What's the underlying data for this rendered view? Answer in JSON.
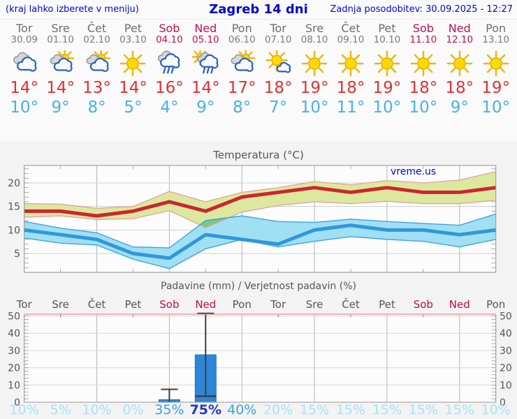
{
  "header": {
    "left_note": "(kraj lahko izberete v meniju)",
    "title": "Zagreb 14 dni",
    "updated": "Zadnja posodobitev: 30.09.2025 - 12:27"
  },
  "watermark": "vreme.us",
  "days": [
    {
      "name": "Tor",
      "date": "30.09",
      "weekend": false,
      "icon": "cloudy"
    },
    {
      "name": "Sre",
      "date": "01.10",
      "weekend": false,
      "icon": "partly-cloudy"
    },
    {
      "name": "Čet",
      "date": "02.10",
      "weekend": false,
      "icon": "partly-cloudy"
    },
    {
      "name": "Pet",
      "date": "03.10",
      "weekend": false,
      "icon": "sunny"
    },
    {
      "name": "Sob",
      "date": "04.10",
      "weekend": true,
      "icon": "rain"
    },
    {
      "name": "Ned",
      "date": "05.10",
      "weekend": true,
      "icon": "sun-rain"
    },
    {
      "name": "Pon",
      "date": "06.10",
      "weekend": false,
      "icon": "partly-cloudy"
    },
    {
      "name": "Tor",
      "date": "07.10",
      "weekend": false,
      "icon": "mostly-sunny"
    },
    {
      "name": "Sre",
      "date": "08.10",
      "weekend": false,
      "icon": "sunny"
    },
    {
      "name": "Čet",
      "date": "09.10",
      "weekend": false,
      "icon": "sunny"
    },
    {
      "name": "Pet",
      "date": "10.10",
      "weekend": false,
      "icon": "sunny"
    },
    {
      "name": "Sob",
      "date": "11.10",
      "weekend": true,
      "icon": "sunny"
    },
    {
      "name": "Ned",
      "date": "12.10",
      "weekend": true,
      "icon": "sunny"
    },
    {
      "name": "Pon",
      "date": "13.10",
      "weekend": false,
      "icon": "sunny"
    }
  ],
  "chart_data": [
    {
      "type": "line",
      "title": "Temperatura (°C)",
      "categories": [
        "Tor 30.09",
        "Sre 01.10",
        "Čet 02.10",
        "Pet 03.10",
        "Sob 04.10",
        "Ned 05.10",
        "Pon 06.10",
        "Tor 07.10",
        "Sre 08.10",
        "Čet 09.10",
        "Pet 10.10",
        "Sob 11.10",
        "Ned 12.10",
        "Pon 13.10"
      ],
      "ylim": [
        1,
        23.7
      ],
      "yticks": [
        5,
        10,
        15,
        20
      ],
      "grid": true,
      "watermark": "vreme.us",
      "series": [
        {
          "name": "maksimalna temperatura",
          "color": "#cd2430",
          "band_color": "#dce89e",
          "values": [
            14,
            14,
            13,
            14,
            16,
            14,
            17,
            18,
            19,
            18,
            19,
            18,
            18,
            19
          ],
          "band_hi": [
            15.6,
            15.5,
            14.6,
            15,
            18.2,
            16,
            18,
            19,
            20.3,
            19.6,
            20.5,
            20,
            20.6,
            22.4
          ],
          "band_lo": [
            12.7,
            13,
            12.2,
            12.4,
            14.1,
            10.5,
            13.8,
            15.2,
            16,
            15.6,
            16.1,
            15.6,
            15.6,
            16.3
          ]
        },
        {
          "name": "minimalna temperatura",
          "color": "#2f97dc",
          "band_color": "#a0e0f2",
          "values": [
            10,
            9,
            8,
            5,
            4,
            9,
            8,
            7,
            10,
            11,
            10,
            10,
            9,
            10
          ],
          "band_hi": [
            11.8,
            10.4,
            9.4,
            6.4,
            6.2,
            12,
            13,
            11.8,
            11.6,
            12.3,
            11.8,
            11.4,
            11,
            13.4
          ],
          "band_lo": [
            8.3,
            7.2,
            6.8,
            3.8,
            1.8,
            6,
            8,
            6.4,
            7.6,
            8.6,
            8,
            7.6,
            6.4,
            8
          ]
        }
      ],
      "overlap_color": "#7cc87f"
    },
    {
      "type": "bar",
      "title": "Padavine (mm) / Verjetnost padavin (%)",
      "categories": [
        "Tor",
        "Sre",
        "Čet",
        "Pet",
        "Sob",
        "Ned",
        "Pon",
        "Tor",
        "Sre",
        "Čet",
        "Pet",
        "Sob",
        "Ned",
        "Pon"
      ],
      "values": [
        0,
        0,
        0,
        0,
        1.5,
        27.5,
        0,
        0,
        0,
        0,
        0,
        0,
        0,
        0
      ],
      "whisker_hi": [
        null,
        null,
        null,
        null,
        7.5,
        51.5,
        null,
        null,
        null,
        null,
        null,
        null,
        null,
        null
      ],
      "whisker_lo": [
        null,
        null,
        null,
        null,
        0,
        3.5,
        null,
        null,
        null,
        null,
        null,
        null,
        null,
        null
      ],
      "probabilities_pct": [
        10,
        5,
        10,
        0,
        35,
        75,
        40,
        20,
        15,
        15,
        15,
        15,
        15,
        10
      ],
      "ylim": [
        0,
        51
      ],
      "yticks": [
        0,
        10,
        20,
        30,
        40,
        50
      ],
      "bar_color": "#2e86d8"
    }
  ],
  "colors": {
    "header_text": "#0008cc",
    "weekday_text": "#6e6e6e",
    "weekend_text": "#c21050",
    "temp_max_text": "#e33030",
    "temp_min_text": "#45b1ea",
    "axis_text": "#555555",
    "prob_low": "#a5e3f8",
    "prob_mid": "#36a3e8",
    "prob_high": "#2336c8"
  }
}
